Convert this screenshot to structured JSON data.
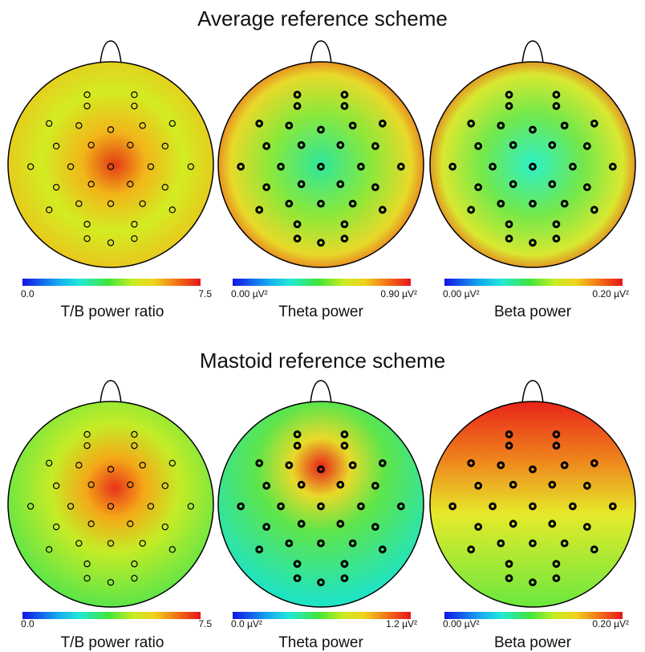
{
  "sections": [
    {
      "title": "Average reference scheme",
      "maps": [
        {
          "caption": "T/B power ratio",
          "scale_min": "0.0",
          "scale_max": "7.5",
          "color_zones": [
            "#e33a14",
            "#f2b61a",
            "#d3ec22",
            "#6fe93c"
          ],
          "electrode_style": "thin"
        },
        {
          "caption": "Theta power",
          "scale_min": "0.00 µV²",
          "scale_max": "0.90 µV²",
          "color_zones": [
            "#e8561a",
            "#e8d92a",
            "#8be83a",
            "#2ee79a"
          ],
          "electrode_style": "bold"
        },
        {
          "caption": "Beta power",
          "scale_min": "0.00 µV²",
          "scale_max": "0.20 µV²",
          "color_zones": [
            "#e8561a",
            "#d9e830",
            "#73e84a",
            "#2ef0c8"
          ],
          "electrode_style": "bold"
        }
      ]
    },
    {
      "title": "Mastoid reference scheme",
      "maps": [
        {
          "caption": "T/B power ratio",
          "scale_min": "0.0",
          "scale_max": "7.5",
          "color_zones": [
            "#40e352",
            "#c5ec26",
            "#f4a818",
            "#e8331a"
          ],
          "electrode_style": "thin"
        },
        {
          "caption": "Theta power",
          "scale_min": "0.0 µV²",
          "scale_max": "1.2 µV²",
          "color_zones": [
            "#20e3c2",
            "#5ee54a",
            "#e8da2a",
            "#e8201a"
          ],
          "electrode_style": "bold"
        },
        {
          "caption": "Beta power",
          "scale_min": "0.00 µV²",
          "scale_max": "0.20 µV²",
          "color_zones": [
            "#e8241a",
            "#ef8a1d",
            "#e5ea2a",
            "#6ae83f"
          ],
          "electrode_style": "bold"
        }
      ]
    }
  ]
}
